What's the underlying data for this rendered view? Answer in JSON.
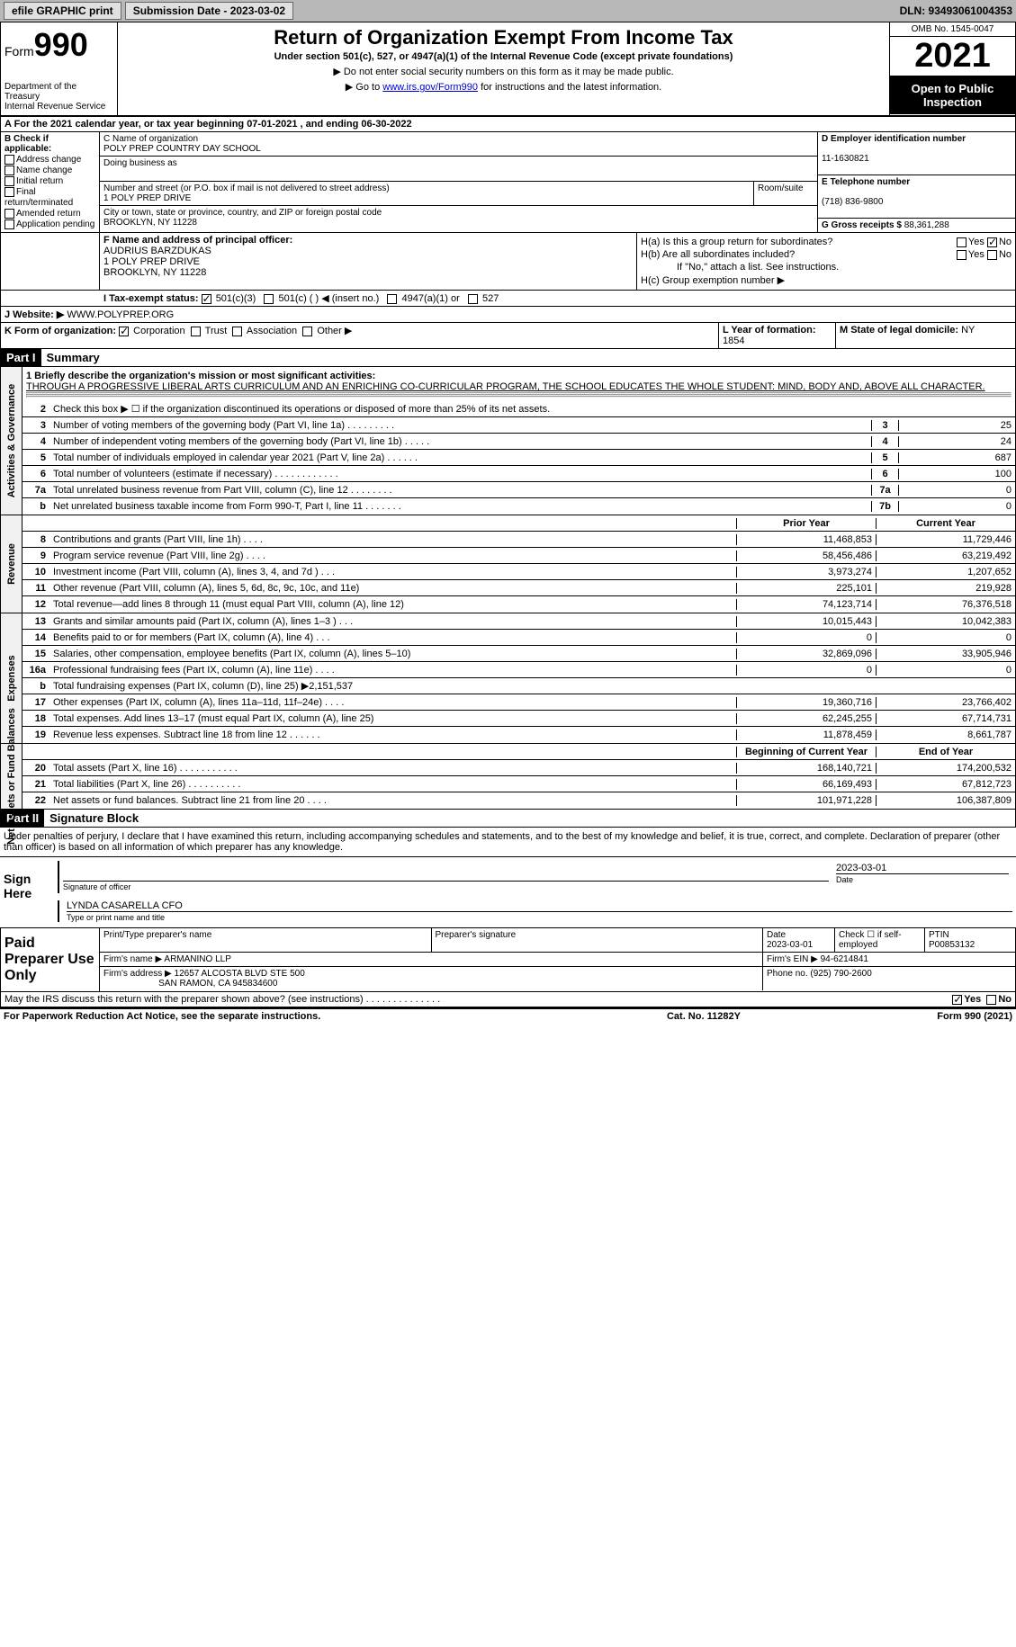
{
  "topbar": {
    "efile": "efile GRAPHIC print",
    "submission": "Submission Date - 2023-03-02",
    "dln": "DLN: 93493061004353"
  },
  "header": {
    "form_word": "Form",
    "form_number": "990",
    "dept": "Department of the Treasury",
    "irs": "Internal Revenue Service",
    "title": "Return of Organization Exempt From Income Tax",
    "sub": "Under section 501(c), 527, or 4947(a)(1) of the Internal Revenue Code (except private foundations)",
    "note1": "▶ Do not enter social security numbers on this form as it may be made public.",
    "note2_pre": "▶ Go to ",
    "note2_link": "www.irs.gov/Form990",
    "note2_post": " for instructions and the latest information.",
    "omb": "OMB No. 1545-0047",
    "year": "2021",
    "inspection": "Open to Public Inspection"
  },
  "row_a": "A   For the 2021 calendar year, or tax year beginning 07-01-2021    , and ending 06-30-2022",
  "section_b": {
    "label": "B Check if applicable:",
    "items": [
      "Address change",
      "Name change",
      "Initial return",
      "Final return/terminated",
      "Amended return",
      "Application pending"
    ]
  },
  "section_c": {
    "name_label": "C Name of organization",
    "name": "POLY PREP COUNTRY DAY SCHOOL",
    "dba_label": "Doing business as",
    "dba": "",
    "street_label": "Number and street (or P.O. box if mail is not delivered to street address)",
    "street": "1 POLY PREP DRIVE",
    "room_label": "Room/suite",
    "room": "",
    "city_label": "City or town, state or province, country, and ZIP or foreign postal code",
    "city": "BROOKLYN, NY  11228"
  },
  "section_d": {
    "ein_label": "D Employer identification number",
    "ein": "11-1630821",
    "phone_label": "E Telephone number",
    "phone": "(718) 836-9800",
    "gross_label": "G Gross receipts $",
    "gross": "88,361,288"
  },
  "section_f": {
    "label": "F Name and address of principal officer:",
    "name": "AUDRIUS BARZDUKAS",
    "addr1": "1 POLY PREP DRIVE",
    "addr2": "BROOKLYN, NY  11228"
  },
  "section_h": {
    "ha": "H(a)  Is this a group return for subordinates?",
    "hb": "H(b)  Are all subordinates included?",
    "hb_note": "If \"No,\" attach a list. See instructions.",
    "hc": "H(c)  Group exemption number ▶",
    "yes": "Yes",
    "no": "No"
  },
  "row_i": {
    "label": "I   Tax-exempt status:",
    "opt1": "501(c)(3)",
    "opt2": "501(c) (  ) ◀ (insert no.)",
    "opt3": "4947(a)(1) or",
    "opt4": "527"
  },
  "row_j": {
    "label": "J   Website: ▶",
    "value": "WWW.POLYPREP.ORG"
  },
  "row_k": {
    "label": "K Form of organization:",
    "opts": [
      "Corporation",
      "Trust",
      "Association",
      "Other ▶"
    ],
    "l_label": "L Year of formation:",
    "l_value": "1854",
    "m_label": "M State of legal domicile:",
    "m_value": "NY"
  },
  "part1": {
    "header": "Part I",
    "title": "Summary"
  },
  "sidebars": {
    "gov": "Activities & Governance",
    "rev": "Revenue",
    "exp": "Expenses",
    "net": "Net Assets or Fund Balances"
  },
  "mission": {
    "label": "1   Briefly describe the organization's mission or most significant activities:",
    "text": "THROUGH A PROGRESSIVE LIBERAL ARTS CURRICULUM AND AN ENRICHING CO-CURRICULAR PROGRAM, THE SCHOOL EDUCATES THE WHOLE STUDENT: MIND, BODY AND, ABOVE ALL CHARACTER."
  },
  "gov_lines": [
    {
      "num": "2",
      "desc": "Check this box ▶ ☐ if the organization discontinued its operations or disposed of more than 25% of its net assets.",
      "box": "",
      "val": ""
    },
    {
      "num": "3",
      "desc": "Number of voting members of the governing body (Part VI, line 1a)   .    .    .    .    .    .    .    .    .",
      "box": "3",
      "val": "25"
    },
    {
      "num": "4",
      "desc": "Number of independent voting members of the governing body (Part VI, line 1b)   .    .    .    .    .",
      "box": "4",
      "val": "24"
    },
    {
      "num": "5",
      "desc": "Total number of individuals employed in calendar year 2021 (Part V, line 2a)   .    .    .    .    .    .",
      "box": "5",
      "val": "687"
    },
    {
      "num": "6",
      "desc": "Total number of volunteers (estimate if necessary)    .    .    .    .    .    .    .    .    .    .    .    .",
      "box": "6",
      "val": "100"
    },
    {
      "num": "7a",
      "desc": "Total unrelated business revenue from Part VIII, column (C), line 12   .    .    .    .    .    .    .    .",
      "box": "7a",
      "val": "0"
    },
    {
      "num": "b",
      "desc": "Net unrelated business taxable income from Form 990-T, Part I, line 11   .    .    .    .    .    .    .",
      "box": "7b",
      "val": "0"
    }
  ],
  "col_headers": {
    "prior": "Prior Year",
    "current": "Current Year"
  },
  "rev_lines": [
    {
      "num": "8",
      "desc": "Contributions and grants (Part VIII, line 1h)    .    .    .    .",
      "prior": "11,468,853",
      "current": "11,729,446"
    },
    {
      "num": "9",
      "desc": "Program service revenue (Part VIII, line 2g)    .    .    .    .",
      "prior": "58,456,486",
      "current": "63,219,492"
    },
    {
      "num": "10",
      "desc": "Investment income (Part VIII, column (A), lines 3, 4, and 7d )    .    .    .",
      "prior": "3,973,274",
      "current": "1,207,652"
    },
    {
      "num": "11",
      "desc": "Other revenue (Part VIII, column (A), lines 5, 6d, 8c, 9c, 10c, and 11e)",
      "prior": "225,101",
      "current": "219,928"
    },
    {
      "num": "12",
      "desc": "Total revenue—add lines 8 through 11 (must equal Part VIII, column (A), line 12)",
      "prior": "74,123,714",
      "current": "76,376,518"
    }
  ],
  "exp_lines": [
    {
      "num": "13",
      "desc": "Grants and similar amounts paid (Part IX, column (A), lines 1–3 )   .    .    .",
      "prior": "10,015,443",
      "current": "10,042,383"
    },
    {
      "num": "14",
      "desc": "Benefits paid to or for members (Part IX, column (A), line 4)    .    .    .",
      "prior": "0",
      "current": "0"
    },
    {
      "num": "15",
      "desc": "Salaries, other compensation, employee benefits (Part IX, column (A), lines 5–10)",
      "prior": "32,869,096",
      "current": "33,905,946"
    },
    {
      "num": "16a",
      "desc": "Professional fundraising fees (Part IX, column (A), line 11e)    .    .    .    .",
      "prior": "0",
      "current": "0"
    },
    {
      "num": "b",
      "desc": "Total fundraising expenses (Part IX, column (D), line 25) ▶2,151,537",
      "prior": "shaded",
      "current": "shaded"
    },
    {
      "num": "17",
      "desc": "Other expenses (Part IX, column (A), lines 11a–11d, 11f–24e)    .    .    .    .",
      "prior": "19,360,716",
      "current": "23,766,402"
    },
    {
      "num": "18",
      "desc": "Total expenses. Add lines 13–17 (must equal Part IX, column (A), line 25)",
      "prior": "62,245,255",
      "current": "67,714,731"
    },
    {
      "num": "19",
      "desc": "Revenue less expenses. Subtract line 18 from line 12   .    .    .    .    .    .",
      "prior": "11,878,459",
      "current": "8,661,787"
    }
  ],
  "net_headers": {
    "begin": "Beginning of Current Year",
    "end": "End of Year"
  },
  "net_lines": [
    {
      "num": "20",
      "desc": "Total assets (Part X, line 16)   .    .    .    .    .    .    .    .    .    .    .",
      "prior": "168,140,721",
      "current": "174,200,532"
    },
    {
      "num": "21",
      "desc": "Total liabilities (Part X, line 26)   .    .    .    .    .    .    .    .    .    .",
      "prior": "66,169,493",
      "current": "67,812,723"
    },
    {
      "num": "22",
      "desc": "Net assets or fund balances. Subtract line 21 from line 20   .    .    .    .",
      "prior": "101,971,228",
      "current": "106,387,809"
    }
  ],
  "part2": {
    "header": "Part II",
    "title": "Signature Block"
  },
  "sig_text": "Under penalties of perjury, I declare that I have examined this return, including accompanying schedules and statements, and to the best of my knowledge and belief, it is true, correct, and complete. Declaration of preparer (other than officer) is based on all information of which preparer has any knowledge.",
  "sign": {
    "label": "Sign Here",
    "sig_label": "Signature of officer",
    "date": "2023-03-01",
    "date_label": "Date",
    "name": "LYNDA CASARELLA  CFO",
    "name_label": "Type or print name and title"
  },
  "preparer": {
    "label": "Paid Preparer Use Only",
    "name_label": "Print/Type preparer's name",
    "sig_label": "Preparer's signature",
    "date_label": "Date",
    "date": "2023-03-01",
    "check_label": "Check ☐ if self-employed",
    "ptin_label": "PTIN",
    "ptin": "P00853132",
    "firm_name_label": "Firm's name    ▶",
    "firm_name": "ARMANINO LLP",
    "firm_ein_label": "Firm's EIN ▶",
    "firm_ein": "94-6214841",
    "firm_addr_label": "Firm's address ▶",
    "firm_addr1": "12657 ALCOSTA BLVD STE 500",
    "firm_addr2": "SAN RAMON, CA  945834600",
    "phone_label": "Phone no.",
    "phone": "(925) 790-2600"
  },
  "discuss": "May the IRS discuss this return with the preparer shown above? (see instructions)    .    .    .    .    .    .    .    .    .    .    .    .    .    .",
  "footer": {
    "left": "For Paperwork Reduction Act Notice, see the separate instructions.",
    "center": "Cat. No. 11282Y",
    "right": "Form 990 (2021)"
  }
}
